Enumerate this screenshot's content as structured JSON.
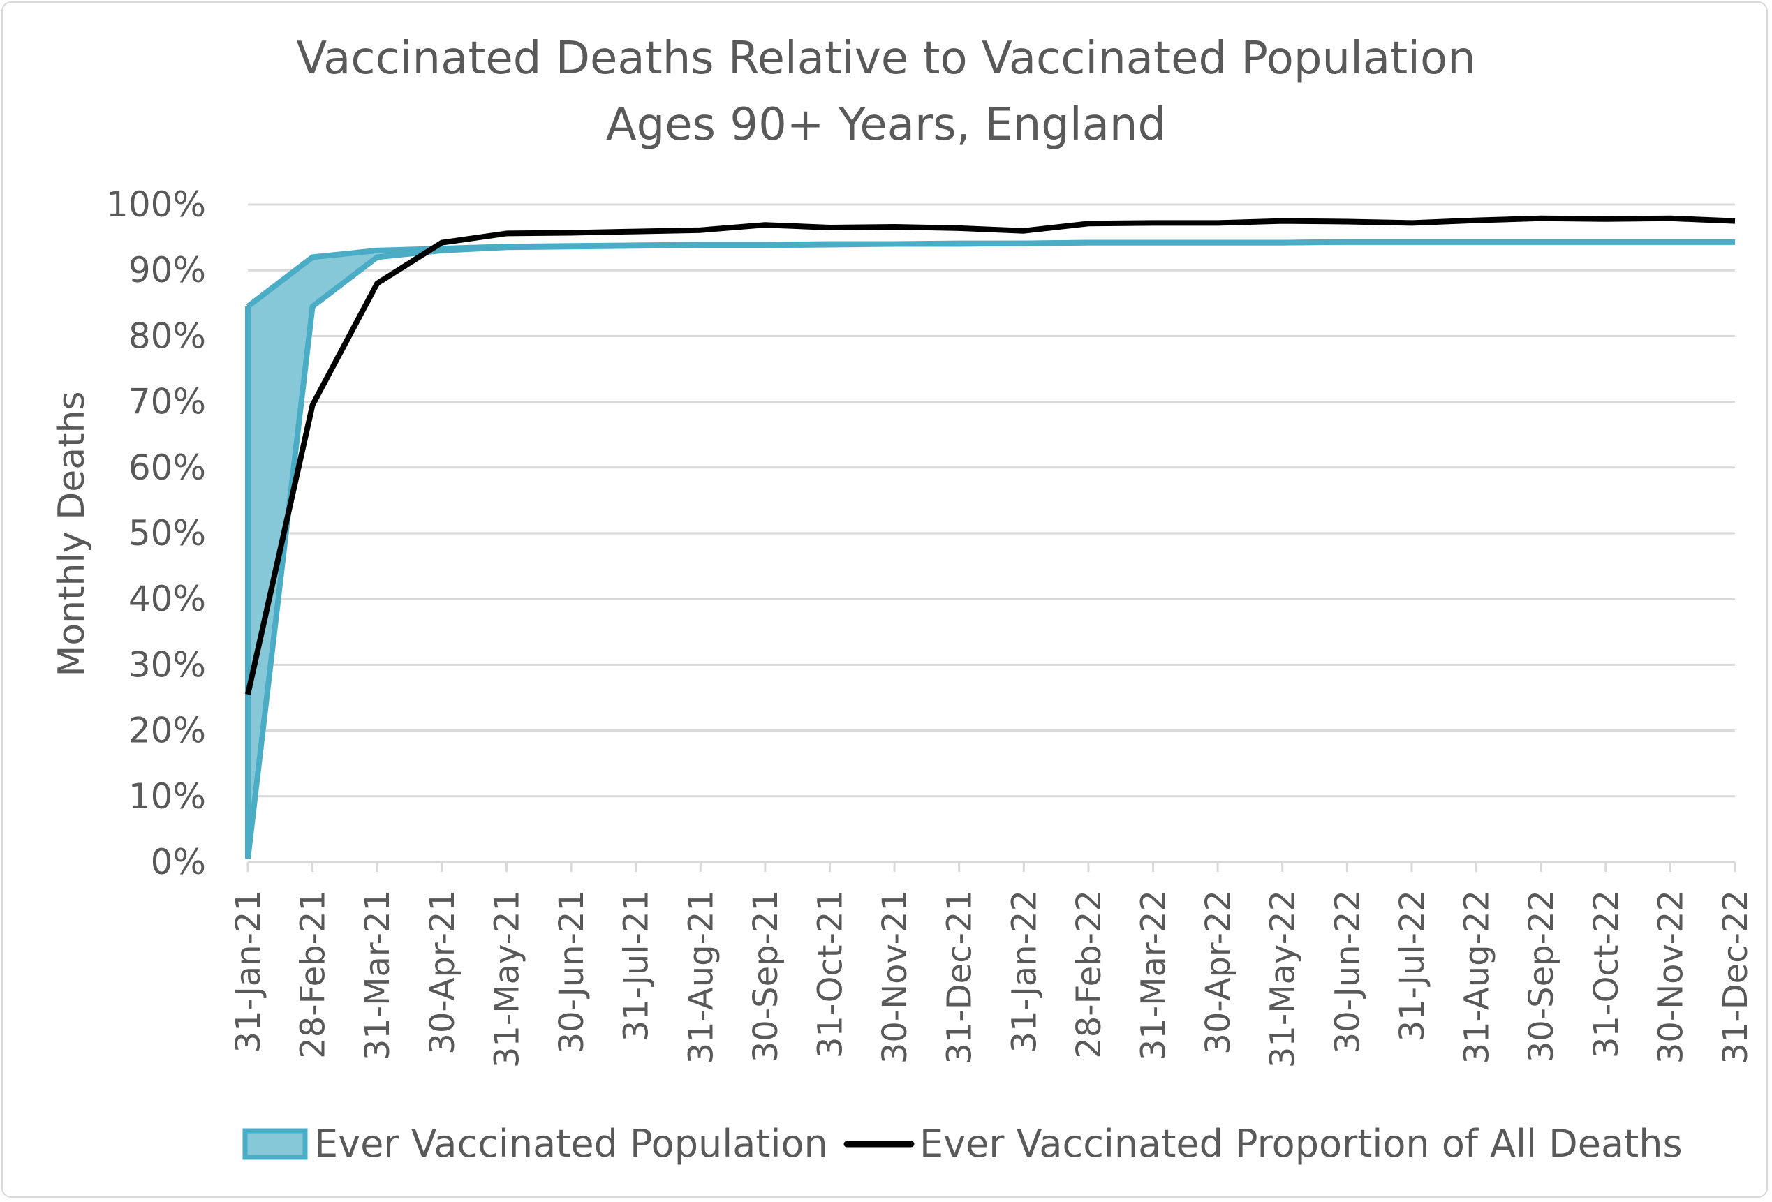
{
  "chart_data": {
    "type": "area",
    "title": "Vaccinated Deaths Relative to Vaccinated Population",
    "subtitle": "Ages 90+ Years, England",
    "ylabel": "Monthly Deaths",
    "xlabel": "",
    "ylim": [
      0,
      100
    ],
    "y_ticks": [
      "0%",
      "10%",
      "20%",
      "30%",
      "40%",
      "50%",
      "60%",
      "70%",
      "80%",
      "90%",
      "100%"
    ],
    "grid": true,
    "legend_position": "bottom",
    "categories": [
      "31-Jan-21",
      "28-Feb-21",
      "31-Mar-21",
      "30-Apr-21",
      "31-May-21",
      "30-Jun-21",
      "31-Jul-21",
      "31-Aug-21",
      "30-Sep-21",
      "31-Oct-21",
      "30-Nov-21",
      "31-Dec-21",
      "31-Jan-22",
      "28-Feb-22",
      "31-Mar-22",
      "30-Apr-22",
      "31-May-22",
      "30-Jun-22",
      "31-Jul-22",
      "31-Aug-22",
      "30-Sep-22",
      "31-Oct-22",
      "30-Nov-22",
      "31-Dec-22"
    ],
    "band_lower_values": [
      0.5,
      84.5,
      92.0,
      93.0,
      93.5,
      93.6,
      93.7,
      93.8,
      93.8,
      93.9,
      94.0,
      94.0,
      94.1,
      94.2,
      94.2,
      94.2,
      94.2,
      94.3,
      94.3,
      94.3,
      94.3,
      94.3,
      94.3,
      94.3
    ],
    "series": [
      {
        "name": "Ever Vaccinated Population",
        "type": "band",
        "color": "#4bacc6",
        "fill": "#86c7d8",
        "values": [
          84.5,
          92.0,
          93.0,
          93.3,
          93.6,
          93.7,
          93.8,
          93.9,
          93.9,
          94.0,
          94.0,
          94.1,
          94.1,
          94.2,
          94.2,
          94.2,
          94.2,
          94.3,
          94.3,
          94.3,
          94.3,
          94.3,
          94.3,
          94.3
        ]
      },
      {
        "name": "Ever Vaccinated Proportion of All Deaths",
        "type": "line",
        "color": "#000000",
        "values": [
          25.5,
          69.5,
          88.0,
          94.2,
          95.6,
          95.7,
          95.9,
          96.1,
          96.9,
          96.5,
          96.6,
          96.4,
          96.0,
          97.1,
          97.2,
          97.2,
          97.5,
          97.4,
          97.2,
          97.6,
          97.9,
          97.8,
          97.9,
          97.5
        ]
      }
    ]
  }
}
